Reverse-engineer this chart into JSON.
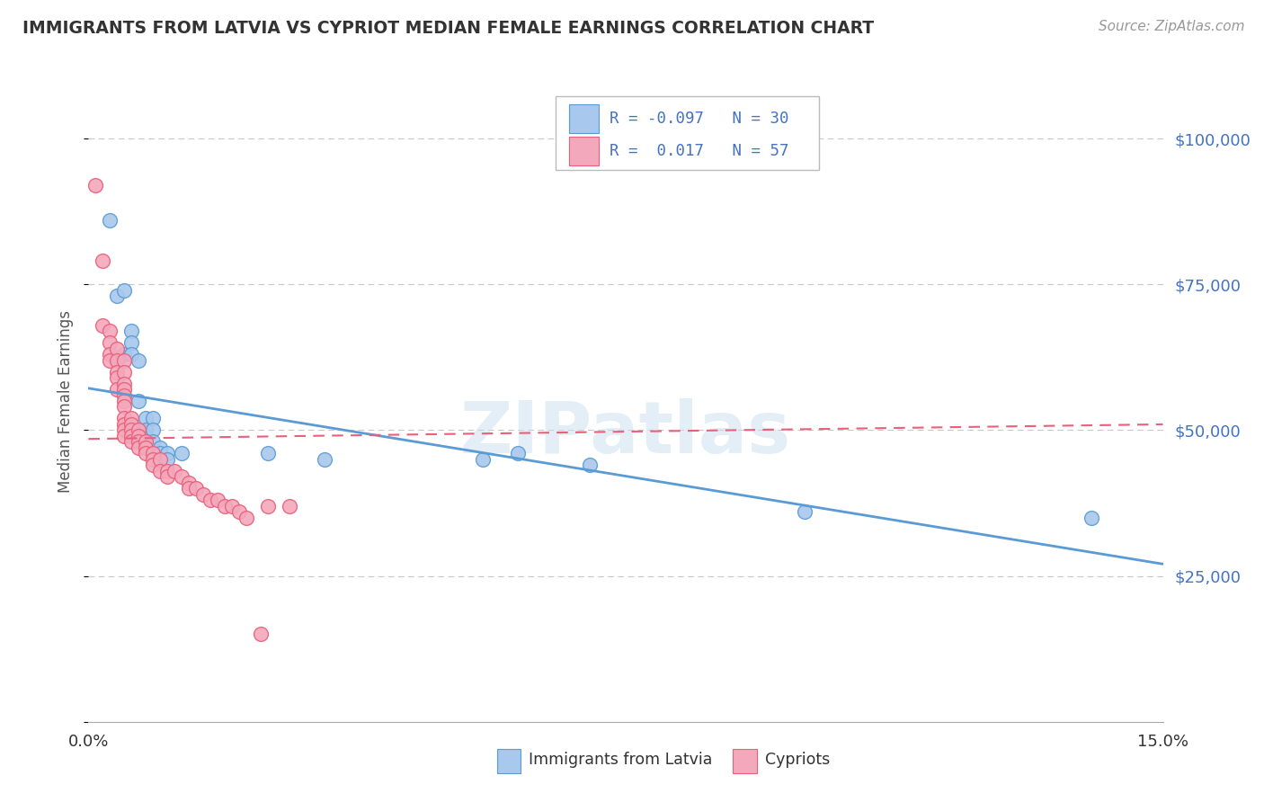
{
  "title": "IMMIGRANTS FROM LATVIA VS CYPRIOT MEDIAN FEMALE EARNINGS CORRELATION CHART",
  "source": "Source: ZipAtlas.com",
  "ylabel": "Median Female Earnings",
  "xlim": [
    0.0,
    0.15
  ],
  "ylim": [
    0,
    110000
  ],
  "color_blue": "#A8C8ED",
  "color_pink": "#F4A8BC",
  "line_color_blue": "#5B9BD5",
  "line_color_pink": "#E8607A",
  "watermark": "ZIPatlas",
  "blue_points": [
    [
      0.003,
      86000
    ],
    [
      0.004,
      73000
    ],
    [
      0.005,
      74000
    ],
    [
      0.005,
      63000
    ],
    [
      0.006,
      67000
    ],
    [
      0.006,
      65000
    ],
    [
      0.006,
      63000
    ],
    [
      0.007,
      62000
    ],
    [
      0.007,
      55000
    ],
    [
      0.007,
      50000
    ],
    [
      0.007,
      49000
    ],
    [
      0.008,
      52000
    ],
    [
      0.008,
      50000
    ],
    [
      0.008,
      49000
    ],
    [
      0.008,
      48000
    ],
    [
      0.009,
      52000
    ],
    [
      0.009,
      50000
    ],
    [
      0.009,
      48000
    ],
    [
      0.01,
      47000
    ],
    [
      0.01,
      46000
    ],
    [
      0.011,
      46000
    ],
    [
      0.011,
      45000
    ],
    [
      0.013,
      46000
    ],
    [
      0.025,
      46000
    ],
    [
      0.033,
      45000
    ],
    [
      0.055,
      45000
    ],
    [
      0.06,
      46000
    ],
    [
      0.07,
      44000
    ],
    [
      0.1,
      36000
    ],
    [
      0.14,
      35000
    ]
  ],
  "pink_points": [
    [
      0.001,
      92000
    ],
    [
      0.002,
      79000
    ],
    [
      0.002,
      68000
    ],
    [
      0.003,
      67000
    ],
    [
      0.003,
      65000
    ],
    [
      0.003,
      63000
    ],
    [
      0.003,
      62000
    ],
    [
      0.004,
      64000
    ],
    [
      0.004,
      62000
    ],
    [
      0.004,
      60000
    ],
    [
      0.004,
      59000
    ],
    [
      0.004,
      57000
    ],
    [
      0.005,
      62000
    ],
    [
      0.005,
      60000
    ],
    [
      0.005,
      58000
    ],
    [
      0.005,
      57000
    ],
    [
      0.005,
      56000
    ],
    [
      0.005,
      55000
    ],
    [
      0.005,
      54000
    ],
    [
      0.005,
      52000
    ],
    [
      0.005,
      51000
    ],
    [
      0.005,
      50000
    ],
    [
      0.005,
      49000
    ],
    [
      0.006,
      52000
    ],
    [
      0.006,
      51000
    ],
    [
      0.006,
      50000
    ],
    [
      0.006,
      49000
    ],
    [
      0.006,
      48000
    ],
    [
      0.007,
      50000
    ],
    [
      0.007,
      49000
    ],
    [
      0.007,
      48000
    ],
    [
      0.007,
      47000
    ],
    [
      0.008,
      48000
    ],
    [
      0.008,
      47000
    ],
    [
      0.008,
      46000
    ],
    [
      0.009,
      46000
    ],
    [
      0.009,
      45000
    ],
    [
      0.009,
      44000
    ],
    [
      0.01,
      45000
    ],
    [
      0.01,
      43000
    ],
    [
      0.011,
      43000
    ],
    [
      0.011,
      42000
    ],
    [
      0.012,
      43000
    ],
    [
      0.013,
      42000
    ],
    [
      0.014,
      41000
    ],
    [
      0.014,
      40000
    ],
    [
      0.015,
      40000
    ],
    [
      0.016,
      39000
    ],
    [
      0.017,
      38000
    ],
    [
      0.018,
      38000
    ],
    [
      0.019,
      37000
    ],
    [
      0.02,
      37000
    ],
    [
      0.021,
      36000
    ],
    [
      0.022,
      35000
    ],
    [
      0.024,
      15000
    ],
    [
      0.025,
      37000
    ],
    [
      0.028,
      37000
    ]
  ],
  "background_color": "#FFFFFF",
  "grid_color": "#C8C8C8",
  "title_color": "#333333",
  "axis_label_color": "#555555",
  "right_tick_color": "#4472C4"
}
